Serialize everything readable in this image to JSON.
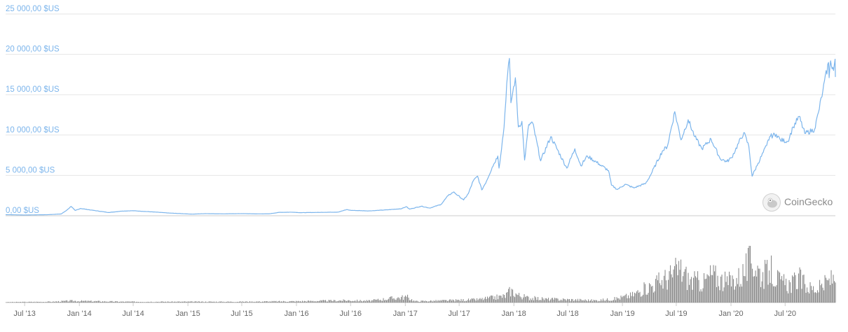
{
  "chart_data": {
    "type": "line",
    "y_axis": {
      "ticks": [
        0,
        5000,
        10000,
        15000,
        20000,
        25000
      ],
      "tick_labels": [
        "0,00 $US",
        "5 000,00 $US",
        "10 000,00 $US",
        "15 000,00 $US",
        "20 000,00 $US",
        "25 000,00 $US"
      ],
      "range": [
        0,
        25000
      ]
    },
    "x_axis": {
      "range": [
        "2013-04-28",
        "2020-12-17"
      ],
      "ticks": [
        "2013-07-01",
        "2014-01-01",
        "2014-07-01",
        "2015-01-01",
        "2015-07-01",
        "2016-01-01",
        "2016-07-01",
        "2017-01-01",
        "2017-07-01",
        "2018-01-01",
        "2018-07-01",
        "2019-01-01",
        "2019-07-01",
        "2020-01-01",
        "2020-07-01"
      ],
      "tick_labels": [
        "Jul '13",
        "Jan '14",
        "Jul '14",
        "Jan '15",
        "Jul '15",
        "Jan '16",
        "Jul '16",
        "Jan '17",
        "Jul '17",
        "Jan '18",
        "Jul '18",
        "Jan '19",
        "Jul '19",
        "Jan '20",
        "Jul '20"
      ]
    },
    "series": [
      {
        "color": "#7cb5ec",
        "points": [
          [
            "2013-04-28",
            135
          ],
          [
            "2013-07-01",
            90
          ],
          [
            "2013-09-15",
            130
          ],
          [
            "2013-11-01",
            220
          ],
          [
            "2013-11-20",
            700
          ],
          [
            "2013-12-04",
            1150
          ],
          [
            "2013-12-18",
            650
          ],
          [
            "2014-01-05",
            900
          ],
          [
            "2014-02-10",
            700
          ],
          [
            "2014-04-10",
            400
          ],
          [
            "2014-05-25",
            580
          ],
          [
            "2014-07-01",
            620
          ],
          [
            "2014-09-15",
            450
          ],
          [
            "2014-11-01",
            330
          ],
          [
            "2015-01-15",
            200
          ],
          [
            "2015-03-01",
            260
          ],
          [
            "2015-05-01",
            235
          ],
          [
            "2015-07-01",
            260
          ],
          [
            "2015-08-20",
            230
          ],
          [
            "2015-10-01",
            240
          ],
          [
            "2015-11-05",
            420
          ],
          [
            "2015-12-20",
            440
          ],
          [
            "2016-01-15",
            380
          ],
          [
            "2016-03-15",
            415
          ],
          [
            "2016-05-20",
            450
          ],
          [
            "2016-06-18",
            760
          ],
          [
            "2016-07-01",
            670
          ],
          [
            "2016-09-01",
            600
          ],
          [
            "2016-11-01",
            730
          ],
          [
            "2016-12-20",
            880
          ],
          [
            "2017-01-04",
            1130
          ],
          [
            "2017-01-15",
            820
          ],
          [
            "2017-02-24",
            1180
          ],
          [
            "2017-03-24",
            950
          ],
          [
            "2017-05-01",
            1400
          ],
          [
            "2017-05-25",
            2500
          ],
          [
            "2017-06-12",
            2950
          ],
          [
            "2017-07-16",
            1950
          ],
          [
            "2017-08-01",
            2750
          ],
          [
            "2017-08-17",
            4300
          ],
          [
            "2017-09-01",
            4900
          ],
          [
            "2017-09-15",
            3200
          ],
          [
            "2017-10-01",
            4300
          ],
          [
            "2017-10-20",
            6000
          ],
          [
            "2017-11-08",
            7400
          ],
          [
            "2017-11-12",
            5900
          ],
          [
            "2017-11-29",
            11000
          ],
          [
            "2017-12-08",
            16400
          ],
          [
            "2017-12-17",
            19500
          ],
          [
            "2017-12-22",
            14000
          ],
          [
            "2018-01-06",
            17100
          ],
          [
            "2018-01-16",
            11000
          ],
          [
            "2018-01-28",
            11700
          ],
          [
            "2018-02-06",
            6900
          ],
          [
            "2018-02-20",
            11300
          ],
          [
            "2018-03-05",
            11500
          ],
          [
            "2018-04-01",
            6800
          ],
          [
            "2018-05-05",
            9800
          ],
          [
            "2018-06-28",
            5900
          ],
          [
            "2018-07-25",
            8300
          ],
          [
            "2018-08-14",
            6200
          ],
          [
            "2018-09-05",
            7400
          ],
          [
            "2018-10-15",
            6400
          ],
          [
            "2018-11-15",
            5600
          ],
          [
            "2018-11-25",
            3800
          ],
          [
            "2018-12-15",
            3250
          ],
          [
            "2019-01-10",
            3900
          ],
          [
            "2019-02-08",
            3450
          ],
          [
            "2019-03-20",
            4000
          ],
          [
            "2019-04-05",
            5000
          ],
          [
            "2019-05-15",
            8000
          ],
          [
            "2019-06-01",
            8600
          ],
          [
            "2019-06-26",
            12900
          ],
          [
            "2019-07-17",
            9400
          ],
          [
            "2019-08-10",
            11900
          ],
          [
            "2019-09-01",
            9800
          ],
          [
            "2019-09-25",
            8300
          ],
          [
            "2019-10-26",
            9500
          ],
          [
            "2019-11-25",
            7100
          ],
          [
            "2019-12-18",
            6700
          ],
          [
            "2020-01-03",
            7200
          ],
          [
            "2020-02-13",
            10300
          ],
          [
            "2020-03-01",
            8600
          ],
          [
            "2020-03-12",
            4900
          ],
          [
            "2020-04-01",
            6500
          ],
          [
            "2020-04-30",
            8700
          ],
          [
            "2020-05-10",
            9800
          ],
          [
            "2020-06-01",
            10100
          ],
          [
            "2020-06-15",
            9400
          ],
          [
            "2020-07-10",
            9200
          ],
          [
            "2020-07-28",
            11000
          ],
          [
            "2020-08-17",
            12300
          ],
          [
            "2020-09-05",
            10200
          ],
          [
            "2020-10-08",
            10700
          ],
          [
            "2020-10-21",
            12800
          ],
          [
            "2020-11-05",
            15500
          ],
          [
            "2020-11-24",
            19000
          ],
          [
            "2020-11-26",
            17100
          ],
          [
            "2020-12-01",
            19200
          ],
          [
            "2020-12-11",
            18000
          ],
          [
            "2020-12-16",
            19400
          ],
          [
            "2020-12-17",
            17200
          ]
        ]
      }
    ],
    "volume": {
      "color": "#8c8c8c",
      "points": [
        [
          "2013-04-28",
          0.01
        ],
        [
          "2013-10-01",
          0.02
        ],
        [
          "2013-12-01",
          0.04
        ],
        [
          "2014-06-01",
          0.02
        ],
        [
          "2015-06-01",
          0.02
        ],
        [
          "2016-01-01",
          0.03
        ],
        [
          "2016-06-15",
          0.05
        ],
        [
          "2016-09-01",
          0.04
        ],
        [
          "2016-11-15",
          0.1
        ],
        [
          "2016-12-20",
          0.12
        ],
        [
          "2017-01-05",
          0.13
        ],
        [
          "2017-02-01",
          0.03
        ],
        [
          "2017-06-01",
          0.05
        ],
        [
          "2017-09-01",
          0.07
        ],
        [
          "2017-12-01",
          0.15
        ],
        [
          "2017-12-20",
          0.28
        ],
        [
          "2018-01-15",
          0.17
        ],
        [
          "2018-02-15",
          0.11
        ],
        [
          "2018-04-15",
          0.08
        ],
        [
          "2018-07-01",
          0.07
        ],
        [
          "2018-10-01",
          0.05
        ],
        [
          "2018-12-01",
          0.08
        ],
        [
          "2019-02-01",
          0.17
        ],
        [
          "2019-04-15",
          0.42
        ],
        [
          "2019-06-15",
          0.62
        ],
        [
          "2019-07-10",
          0.78
        ],
        [
          "2019-08-15",
          0.5
        ],
        [
          "2019-10-01",
          0.47
        ],
        [
          "2019-10-26",
          0.65
        ],
        [
          "2019-12-15",
          0.45
        ],
        [
          "2020-02-01",
          0.6
        ],
        [
          "2020-03-12",
          0.98
        ],
        [
          "2020-04-15",
          0.6
        ],
        [
          "2020-05-10",
          0.75
        ],
        [
          "2020-06-15",
          0.45
        ],
        [
          "2020-07-20",
          0.42
        ],
        [
          "2020-08-15",
          0.55
        ],
        [
          "2020-09-15",
          0.35
        ],
        [
          "2020-10-15",
          0.3
        ],
        [
          "2020-11-15",
          0.45
        ],
        [
          "2020-12-17",
          0.6
        ]
      ]
    }
  },
  "watermark": {
    "text": "CoinGecko",
    "icon": "gecko-logo-icon"
  }
}
